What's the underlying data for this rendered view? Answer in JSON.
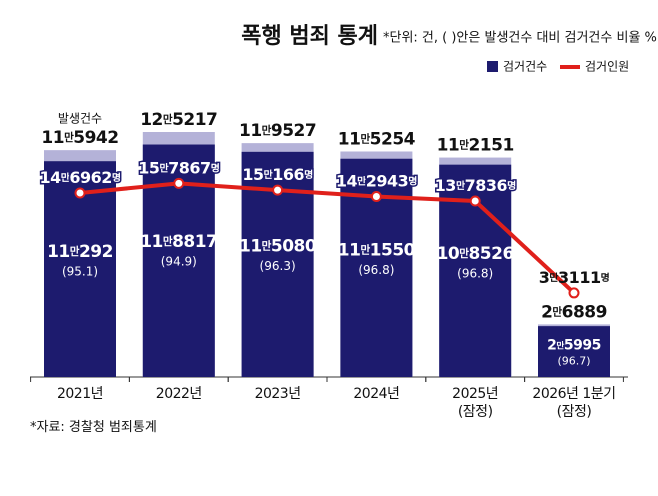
{
  "chart_data": {
    "type": "bar-line",
    "title": "폭행 범죄 통계",
    "subtitle": "*단위: 건, ( )안은 발생건수 대비 검거건수 비율 %",
    "source": "*자료: 경찰청 범죄통계",
    "categories": [
      "2021년",
      "2022년",
      "2023년",
      "2024년",
      "2025년\n(잠정)",
      "2026년 1분기\n(잠정)"
    ],
    "series": [
      {
        "name": "발생건수",
        "color": "#b4b2d8",
        "values": [
          115942,
          125217,
          119527,
          115254,
          112151,
          26889
        ],
        "value_labels": [
          "11만5942",
          "12만5217",
          "11만9527",
          "11만5254",
          "11만2151",
          "2만6889"
        ]
      },
      {
        "name": "검거건수",
        "color": "#1d1b6e",
        "values": [
          110292,
          118817,
          115080,
          111550,
          108526,
          25995
        ],
        "value_labels": [
          "11만292",
          "11만8817",
          "11만5080",
          "11만1550",
          "10만8526",
          "2만5995"
        ],
        "ratio_labels": [
          "(95.1)",
          "(94.9)",
          "(96.3)",
          "(96.8)",
          "(96.8)",
          "(96.7)"
        ]
      },
      {
        "name": "검거인원",
        "color": "#e0201b",
        "type": "line",
        "values": [
          146962,
          157867,
          150166,
          142943,
          137836,
          33111
        ],
        "value_labels": [
          "14만6962명",
          "15만7867명",
          "15만166명",
          "14만2943명",
          "13만7836명",
          "3만3111명"
        ]
      }
    ]
  }
}
